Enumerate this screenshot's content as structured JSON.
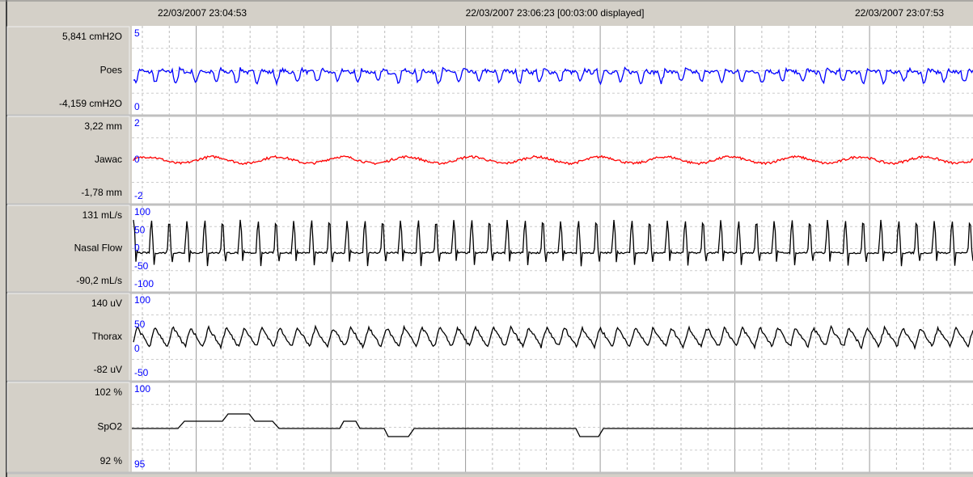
{
  "header": {
    "start": "22/03/2007 23:04:53",
    "middle": "22/03/2007 23:06:23 [00:03:00 displayed]",
    "end": "22/03/2007 23:07:53"
  },
  "channels": [
    {
      "name": "Poes",
      "max": "5,841 cmH2O",
      "min": "-4,159 cmH2O",
      "scale": [
        5,
        0
      ],
      "color": "#0000ff"
    },
    {
      "name": "Jawac",
      "max": "3,22 mm",
      "min": "-1,78 mm",
      "scale": [
        2,
        0,
        -2
      ],
      "color": "#ff0000"
    },
    {
      "name": "Nasal Flow",
      "max": "131 mL/s",
      "min": "-90,2 mL/s",
      "scale": [
        100,
        50,
        0,
        -50,
        -100
      ],
      "color": "#000000"
    },
    {
      "name": "Thorax",
      "max": "140  uV",
      "min": "-82  uV",
      "scale": [
        100,
        50,
        0,
        -50
      ],
      "color": "#000000"
    },
    {
      "name": "SpO2",
      "max": "102  %",
      "min": "92  %",
      "scale": [
        100,
        95
      ],
      "color": "#000000"
    }
  ]
}
